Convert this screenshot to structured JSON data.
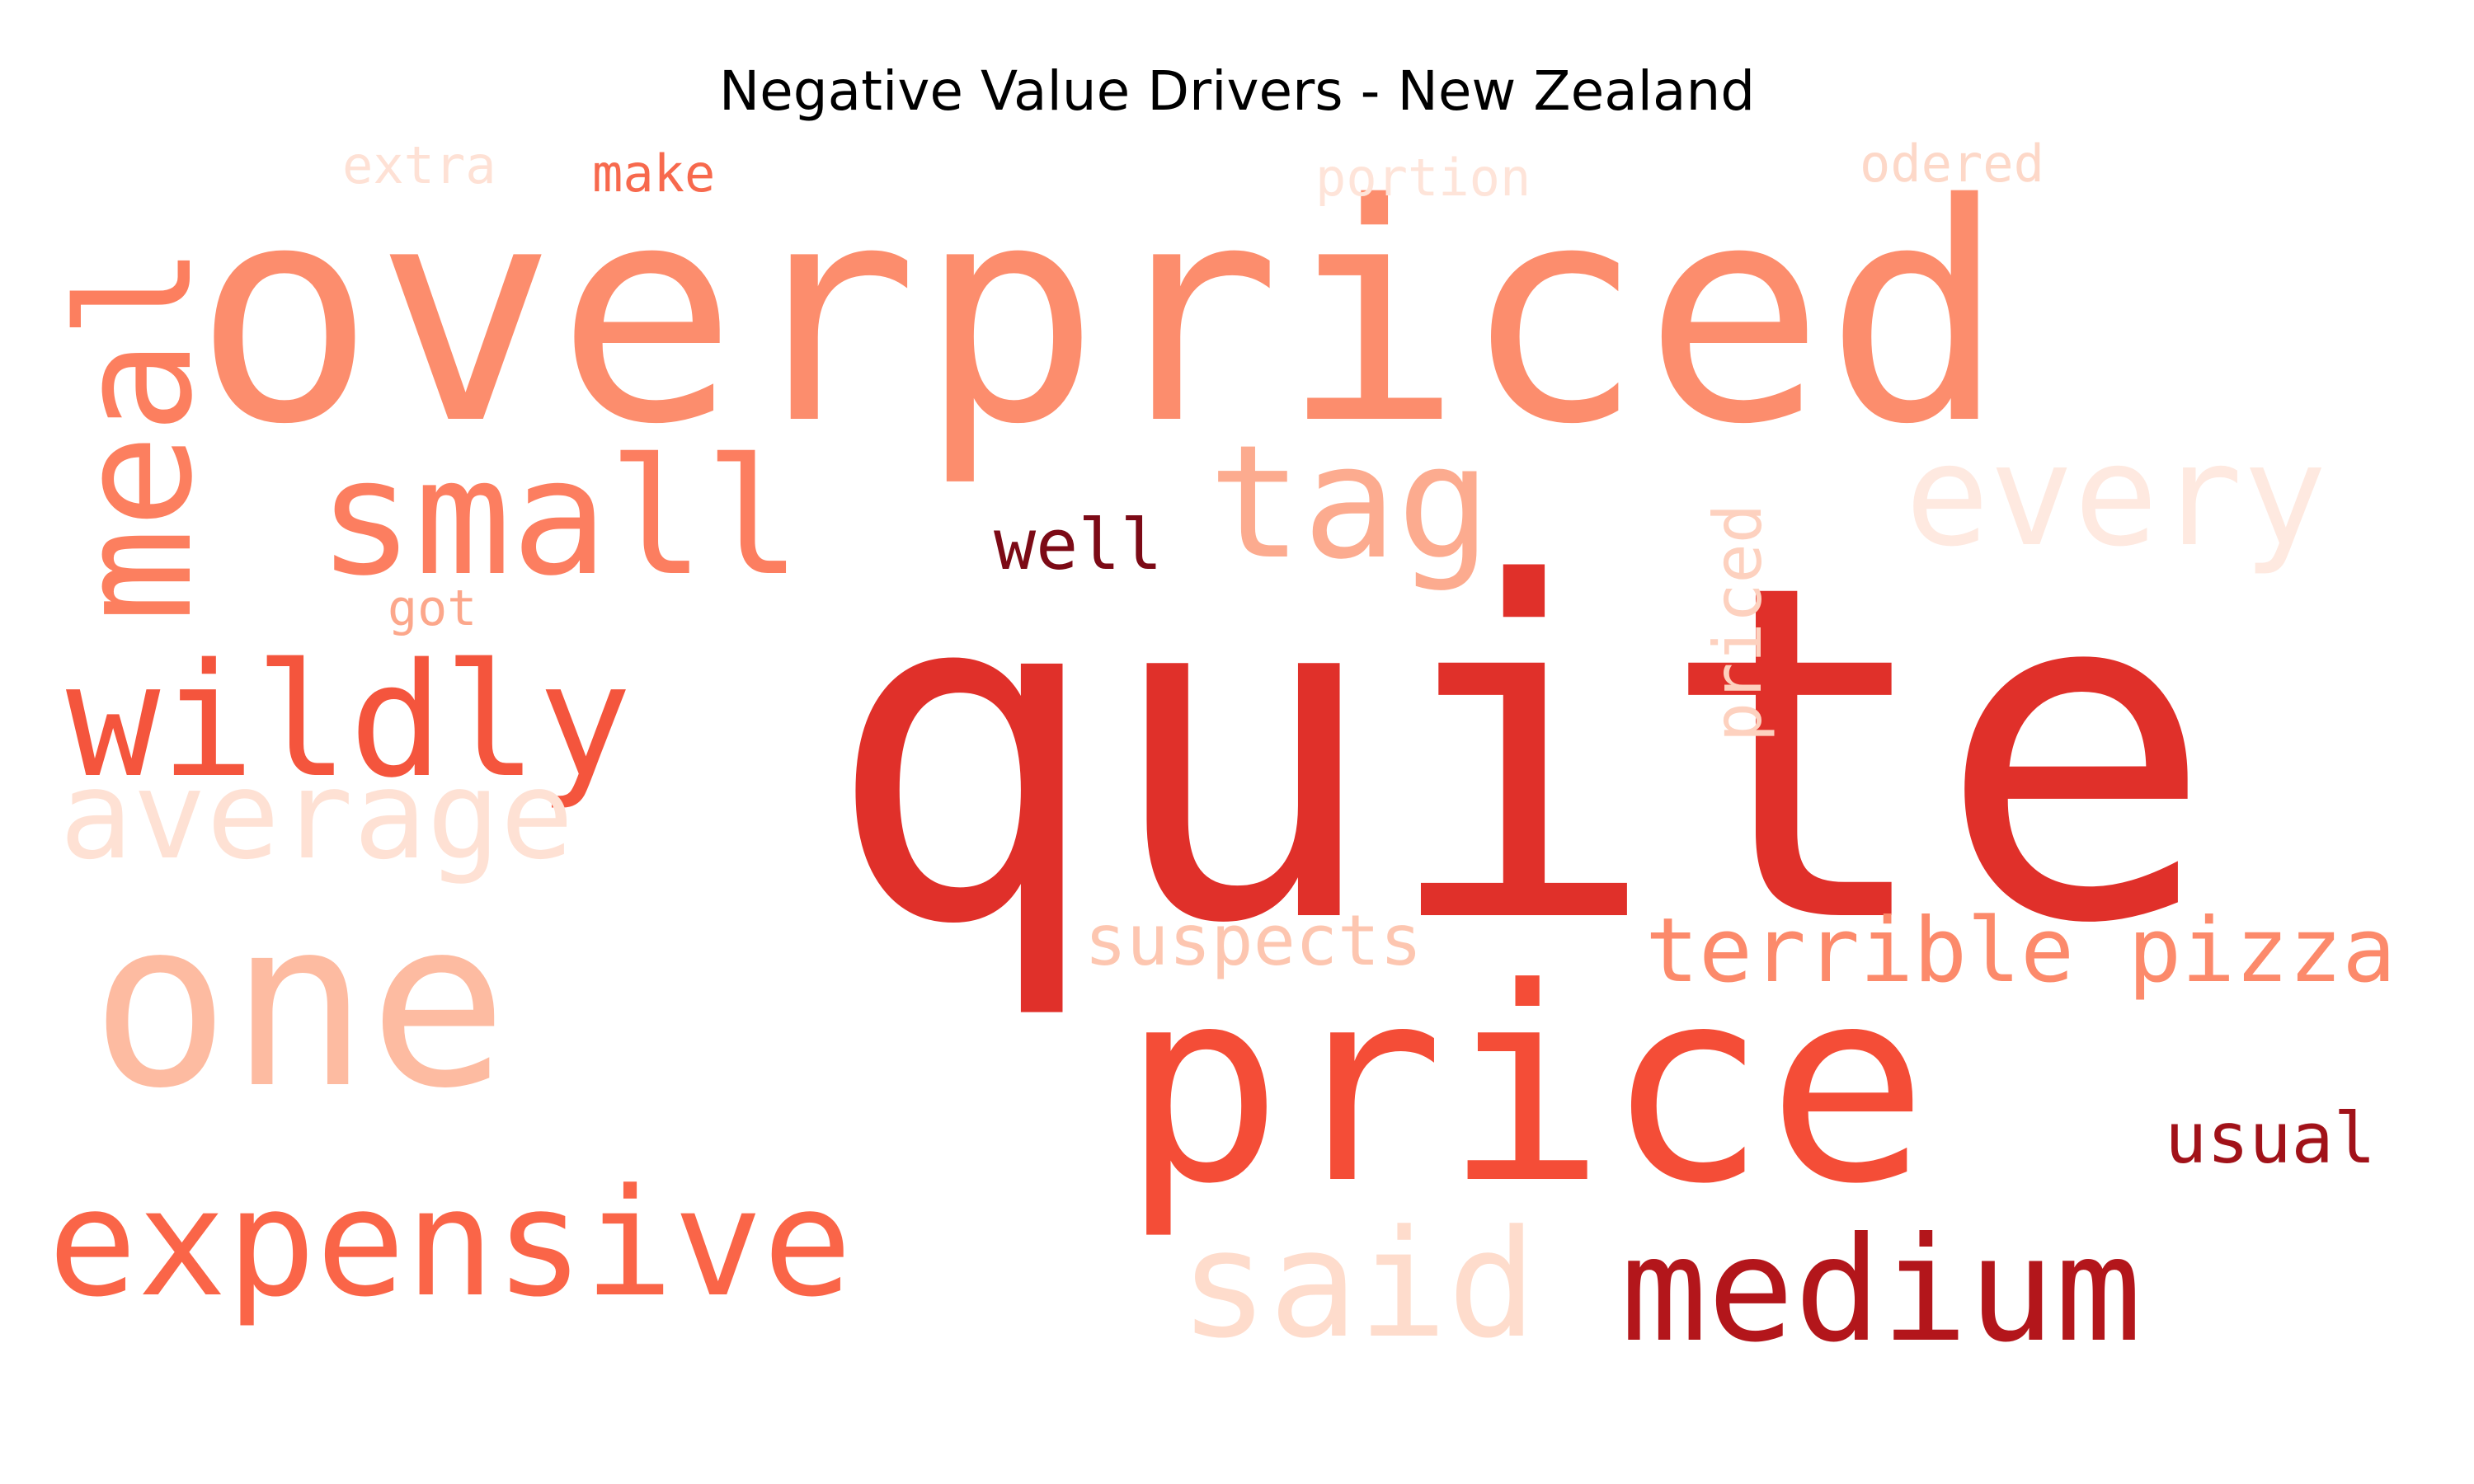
{
  "chart_data": {
    "type": "word_cloud",
    "title": "Negative Value Drivers - New Zealand",
    "colormap": "Reds",
    "words": [
      {
        "text": "quite",
        "color": "#e0302a"
      },
      {
        "text": "overpriced",
        "color": "#fc8d6d"
      },
      {
        "text": "price",
        "color": "#f44d37"
      },
      {
        "text": "one",
        "color": "#fdbba1"
      },
      {
        "text": "small",
        "color": "#fc7e60"
      },
      {
        "text": "wildly",
        "color": "#f4553d"
      },
      {
        "text": "expensive",
        "color": "#fa6548"
      },
      {
        "text": "medium",
        "color": "#b3161b"
      },
      {
        "text": "meal",
        "color": "#fc7f5f"
      },
      {
        "text": "tag",
        "color": "#fcab8f"
      },
      {
        "text": "every",
        "color": "#fee9e0"
      },
      {
        "text": "average",
        "color": "#fee1d4"
      },
      {
        "text": "said",
        "color": "#fedccc"
      },
      {
        "text": "terrible pizza",
        "color": "#fc8a6b"
      },
      {
        "text": "suspects",
        "color": "#fdc6b0"
      },
      {
        "text": "priced",
        "color": "#fdd1bf"
      },
      {
        "text": "well",
        "color": "#7c0a16"
      },
      {
        "text": "usual",
        "color": "#a11219"
      },
      {
        "text": "got",
        "color": "#fca78b"
      },
      {
        "text": "make",
        "color": "#f7694d"
      },
      {
        "text": "extra",
        "color": "#fee1d5"
      },
      {
        "text": "portion",
        "color": "#fee4d9"
      },
      {
        "text": "odered",
        "color": "#fdd8c8"
      }
    ]
  }
}
